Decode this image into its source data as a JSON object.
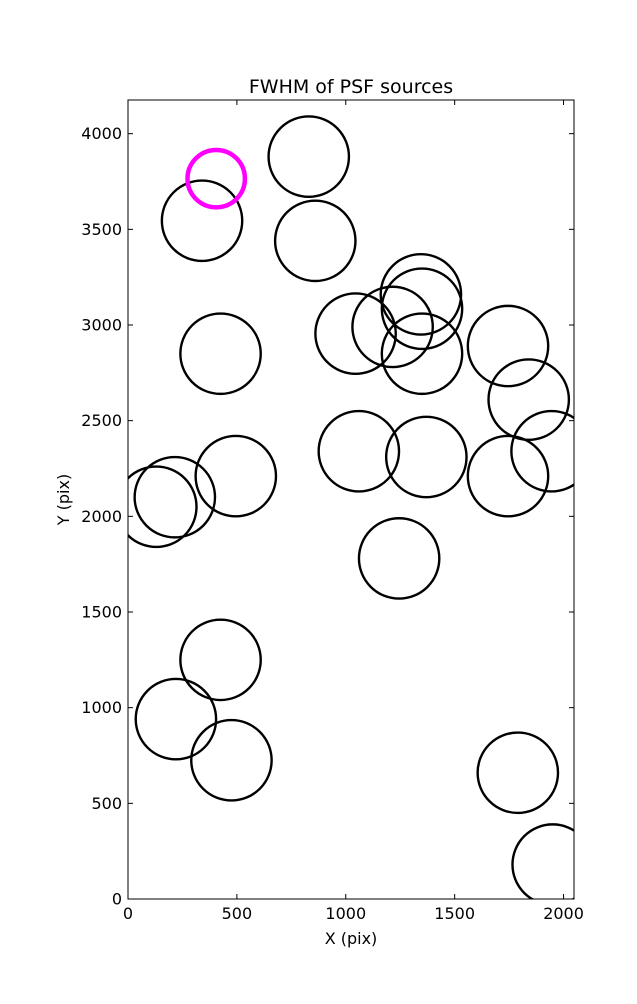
{
  "chart_data": {
    "type": "scatter",
    "marker": "open-circle",
    "title": "FWHM of PSF sources",
    "xlabel": "X (pix)",
    "ylabel": "Y (pix)",
    "xlim": [
      0,
      2048
    ],
    "ylim": [
      0,
      4176
    ],
    "xticks": [
      0,
      500,
      1000,
      1500,
      2000
    ],
    "yticks": [
      0,
      500,
      1000,
      1500,
      2000,
      2500,
      3000,
      3500,
      4000
    ],
    "grid": false,
    "legend": "none",
    "points": [
      {
        "x": 830,
        "y": 3880,
        "r": 210,
        "color": "#000000"
      },
      {
        "x": 340,
        "y": 3545,
        "r": 210,
        "color": "#000000"
      },
      {
        "x": 860,
        "y": 3440,
        "r": 210,
        "color": "#000000"
      },
      {
        "x": 425,
        "y": 2850,
        "r": 210,
        "color": "#000000"
      },
      {
        "x": 1045,
        "y": 2955,
        "r": 210,
        "color": "#000000"
      },
      {
        "x": 1215,
        "y": 2990,
        "r": 210,
        "color": "#000000"
      },
      {
        "x": 1345,
        "y": 3160,
        "r": 210,
        "color": "#000000"
      },
      {
        "x": 1350,
        "y": 3085,
        "r": 210,
        "color": "#000000"
      },
      {
        "x": 1350,
        "y": 2850,
        "r": 210,
        "color": "#000000"
      },
      {
        "x": 1745,
        "y": 2890,
        "r": 210,
        "color": "#000000"
      },
      {
        "x": 1840,
        "y": 2610,
        "r": 210,
        "color": "#000000"
      },
      {
        "x": 1945,
        "y": 2340,
        "r": 210,
        "color": "#000000"
      },
      {
        "x": 1060,
        "y": 2340,
        "r": 210,
        "color": "#000000"
      },
      {
        "x": 1370,
        "y": 2310,
        "r": 210,
        "color": "#000000"
      },
      {
        "x": 1745,
        "y": 2210,
        "r": 210,
        "color": "#000000"
      },
      {
        "x": 495,
        "y": 2210,
        "r": 210,
        "color": "#000000"
      },
      {
        "x": 215,
        "y": 2100,
        "r": 210,
        "color": "#000000"
      },
      {
        "x": 130,
        "y": 2050,
        "r": 210,
        "color": "#000000"
      },
      {
        "x": 1245,
        "y": 1780,
        "r": 210,
        "color": "#000000"
      },
      {
        "x": 425,
        "y": 1250,
        "r": 210,
        "color": "#000000"
      },
      {
        "x": 220,
        "y": 940,
        "r": 210,
        "color": "#000000"
      },
      {
        "x": 475,
        "y": 725,
        "r": 210,
        "color": "#000000"
      },
      {
        "x": 1790,
        "y": 660,
        "r": 210,
        "color": "#000000"
      },
      {
        "x": 1950,
        "y": 180,
        "r": 210,
        "color": "#000000"
      },
      {
        "x": 405,
        "y": 3765,
        "r": 150,
        "color": "#ff00ff"
      }
    ]
  }
}
